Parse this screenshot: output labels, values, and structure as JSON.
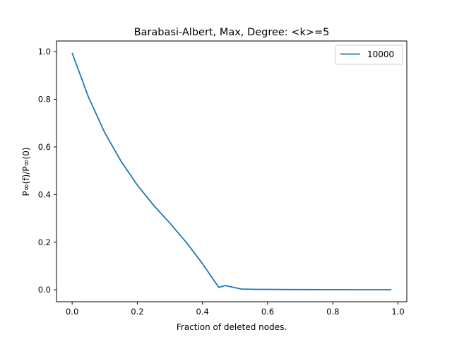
{
  "chart_data": {
    "type": "line",
    "title": "Barabasi-Albert, Max, Degree: <k>=5",
    "xlabel": "Fraction of deleted nodes.",
    "ylabel": "P∞(f)/P∞(0)",
    "xlim": [
      -0.048,
      1.027
    ],
    "ylim": [
      -0.05,
      1.045
    ],
    "xticks": [
      0.0,
      0.2,
      0.4,
      0.6,
      0.8,
      1.0
    ],
    "xtick_labels": [
      "0.0",
      "0.2",
      "0.4",
      "0.6",
      "0.8",
      "1.0"
    ],
    "yticks": [
      0.0,
      0.2,
      0.4,
      0.6,
      0.8,
      1.0
    ],
    "ytick_labels": [
      "0.0",
      "0.2",
      "0.4",
      "0.6",
      "0.8",
      "1.0"
    ],
    "grid": false,
    "legend_position": "top-right",
    "series": [
      {
        "name": "10000",
        "color": "#1f77b4",
        "x": [
          0.0,
          0.05,
          0.1,
          0.15,
          0.2,
          0.25,
          0.3,
          0.35,
          0.4,
          0.45,
          0.47,
          0.52,
          0.57,
          0.62,
          0.67,
          0.72,
          0.77,
          0.82,
          0.87,
          0.92,
          0.98
        ],
        "y": [
          0.995,
          0.81,
          0.66,
          0.54,
          0.44,
          0.355,
          0.28,
          0.2,
          0.11,
          0.01,
          0.018,
          0.003,
          0.002,
          0.0015,
          0.001,
          0.001,
          0.0008,
          0.0006,
          0.0005,
          0.0004,
          0.0003
        ]
      }
    ]
  }
}
